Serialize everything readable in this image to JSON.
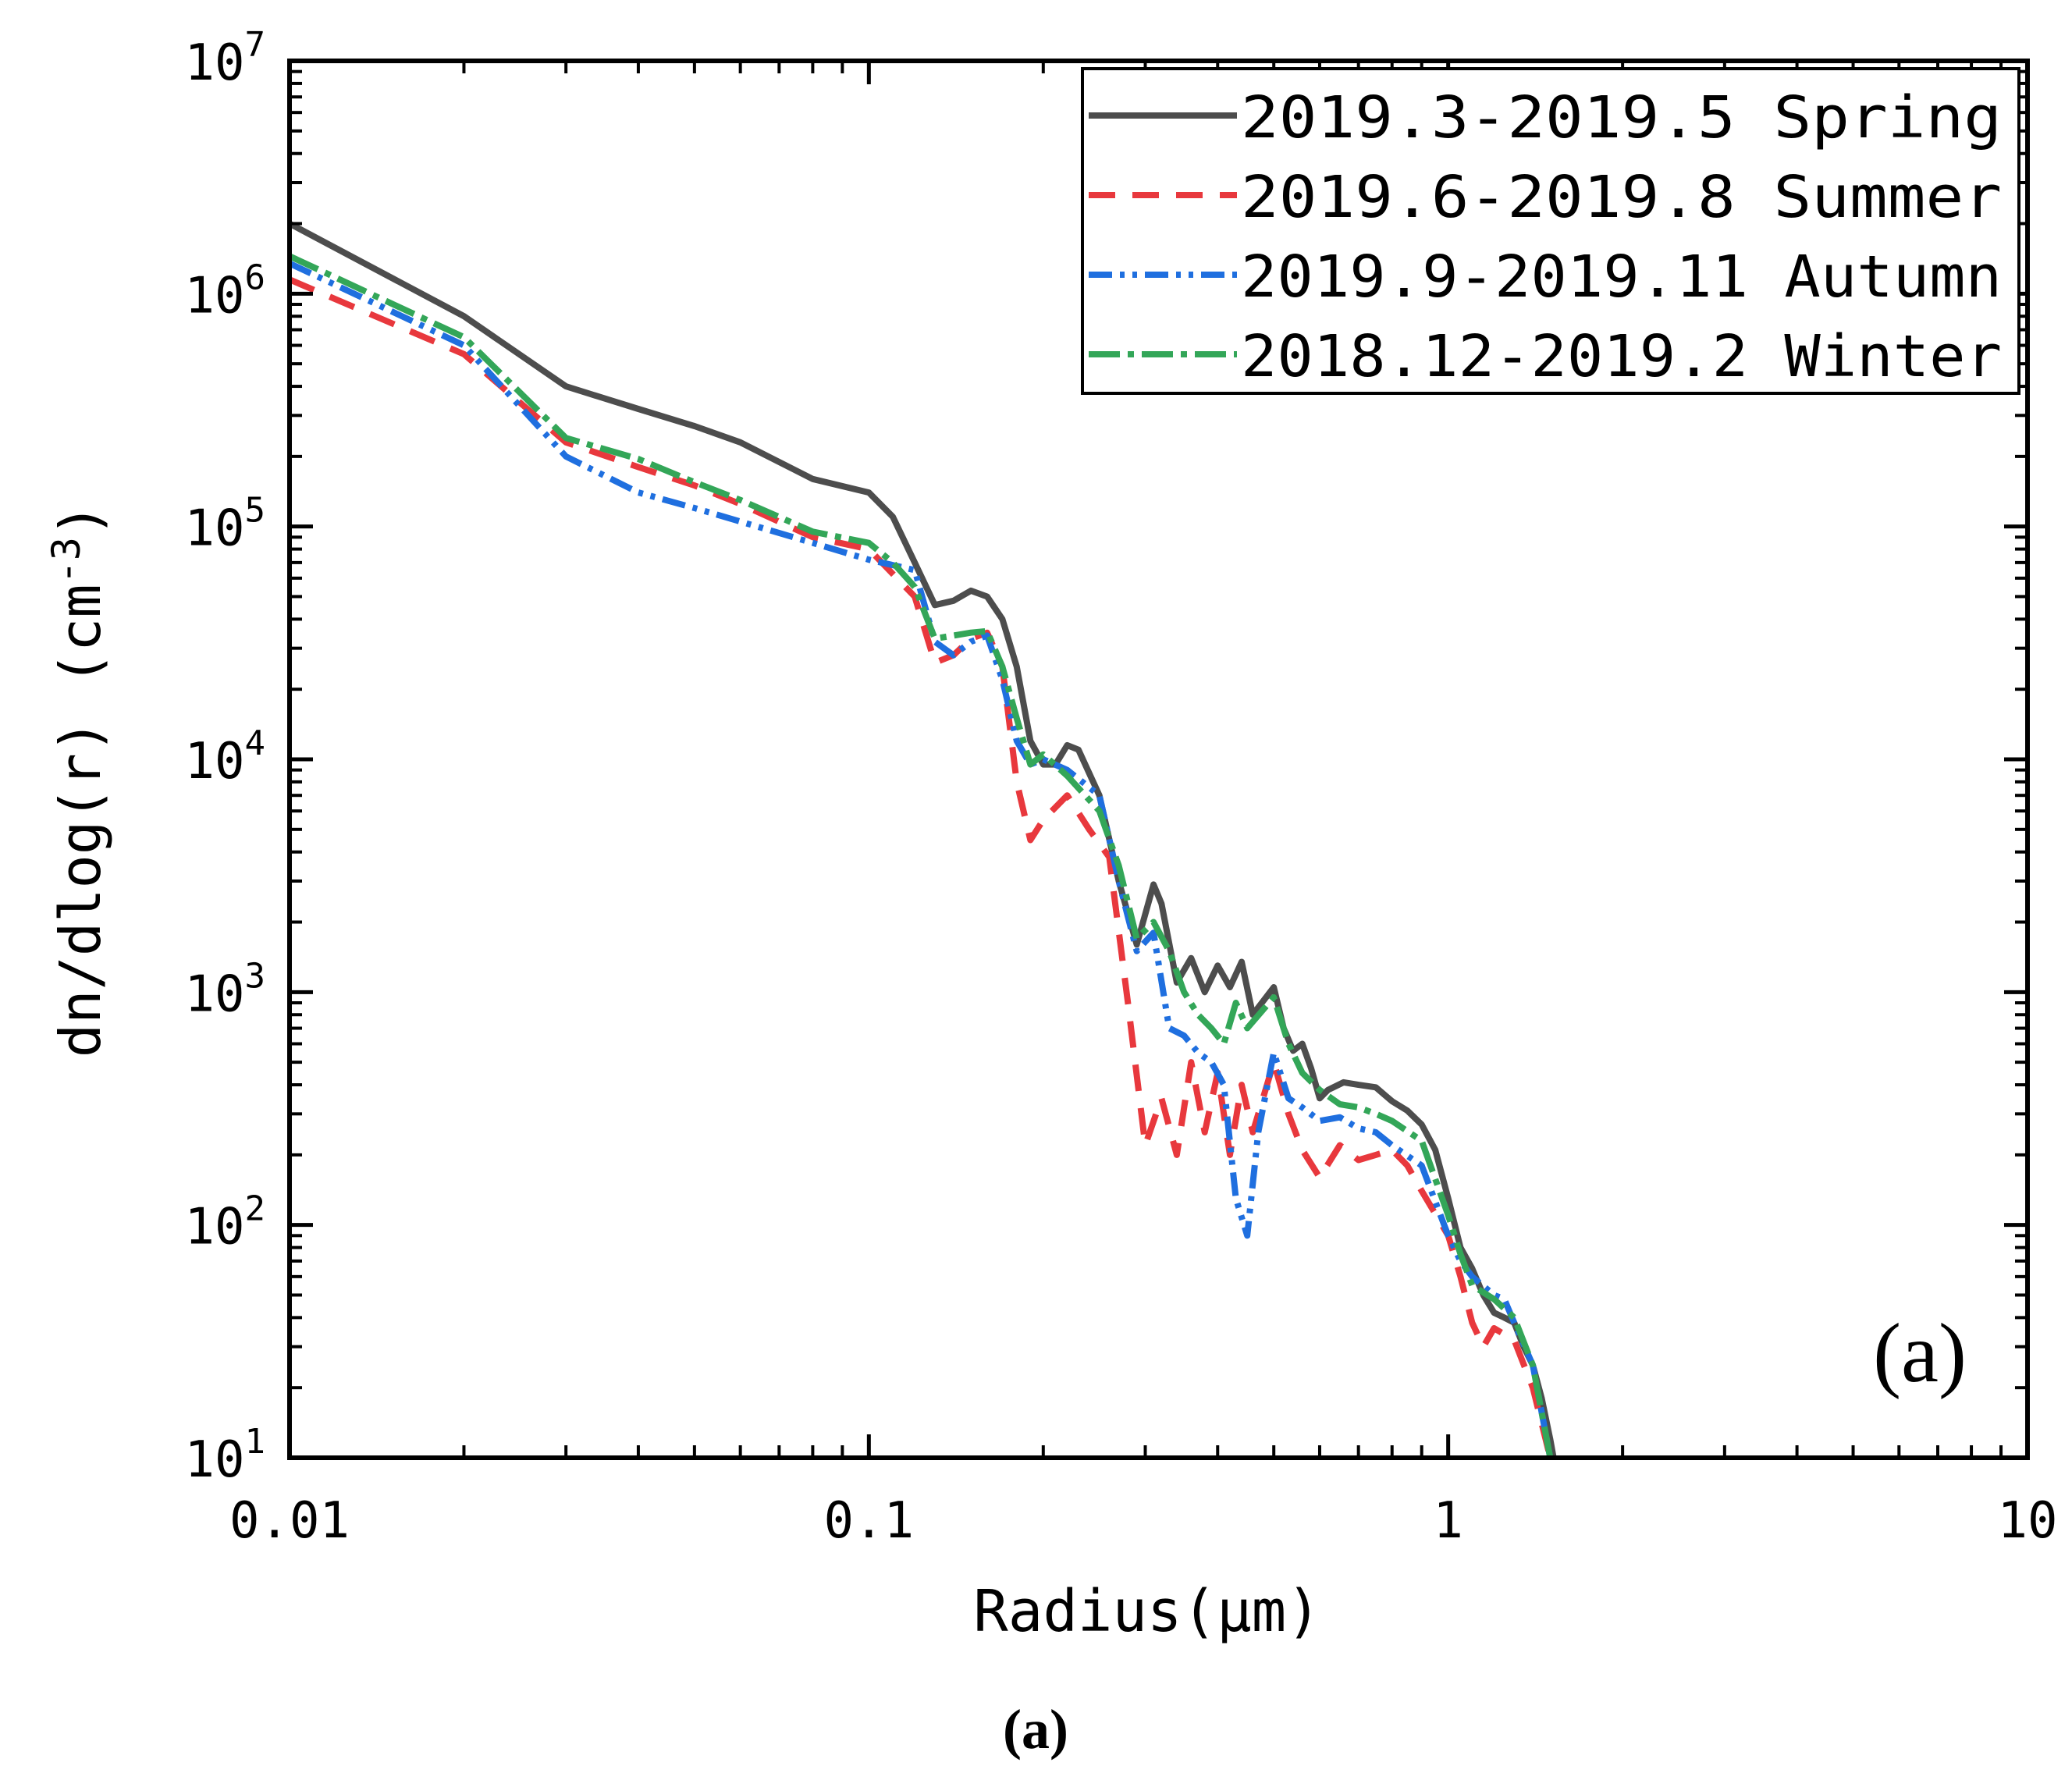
{
  "chart_data": {
    "type": "line",
    "xscale": "log",
    "yscale": "log",
    "xlim": [
      0.01,
      10
    ],
    "ylim": [
      10,
      10000000
    ],
    "xlabel": "Radius(μm)",
    "ylabel": "dn/dlog(r) (cm^-3)",
    "ylabel_main": "dn/dlog(r) (cm",
    "ylabel_exp": "-3",
    "ylabel_close": ")",
    "x_ticks": [
      {
        "value": 0.01,
        "label": "0.01"
      },
      {
        "value": 0.1,
        "label": "0.1"
      },
      {
        "value": 1,
        "label": "1"
      },
      {
        "value": 10,
        "label": "10"
      }
    ],
    "y_ticks": [
      {
        "value": 10,
        "base": "10",
        "exp": "1"
      },
      {
        "value": 100,
        "base": "10",
        "exp": "2"
      },
      {
        "value": 1000,
        "base": "10",
        "exp": "3"
      },
      {
        "value": 10000,
        "base": "10",
        "exp": "4"
      },
      {
        "value": 100000,
        "base": "10",
        "exp": "5"
      },
      {
        "value": 1000000,
        "base": "10",
        "exp": "6"
      },
      {
        "value": 10000000,
        "base": "10",
        "exp": "7"
      }
    ],
    "panel_label": "(a)",
    "caption": "(a)",
    "legend_position": "top-right",
    "series": [
      {
        "name": "2019.3-2019.5  Spring",
        "color": "#4d4d4d",
        "dash": "solid",
        "points": [
          [
            0.01,
            2000000
          ],
          [
            0.02,
            800000
          ],
          [
            0.03,
            400000
          ],
          [
            0.04,
            320000
          ],
          [
            0.05,
            270000
          ],
          [
            0.06,
            230000
          ],
          [
            0.08,
            160000
          ],
          [
            0.1,
            140000
          ],
          [
            0.11,
            110000
          ],
          [
            0.12,
            70000
          ],
          [
            0.13,
            46000
          ],
          [
            0.14,
            48000
          ],
          [
            0.15,
            53000
          ],
          [
            0.16,
            50000
          ],
          [
            0.17,
            40000
          ],
          [
            0.18,
            25000
          ],
          [
            0.19,
            12000
          ],
          [
            0.2,
            9500
          ],
          [
            0.21,
            9500
          ],
          [
            0.22,
            11500
          ],
          [
            0.23,
            11000
          ],
          [
            0.25,
            7000
          ],
          [
            0.27,
            3000
          ],
          [
            0.29,
            1600
          ],
          [
            0.31,
            2900
          ],
          [
            0.32,
            2400
          ],
          [
            0.34,
            1100
          ],
          [
            0.36,
            1400
          ],
          [
            0.38,
            1000
          ],
          [
            0.4,
            1300
          ],
          [
            0.42,
            1050
          ],
          [
            0.44,
            1350
          ],
          [
            0.46,
            800
          ],
          [
            0.5,
            1050
          ],
          [
            0.52,
            700
          ],
          [
            0.54,
            560
          ],
          [
            0.56,
            600
          ],
          [
            0.58,
            470
          ],
          [
            0.6,
            350
          ],
          [
            0.62,
            380
          ],
          [
            0.66,
            410
          ],
          [
            0.7,
            400
          ],
          [
            0.75,
            390
          ],
          [
            0.8,
            340
          ],
          [
            0.85,
            310
          ],
          [
            0.9,
            270
          ],
          [
            0.95,
            210
          ],
          [
            1.0,
            130
          ],
          [
            1.05,
            80
          ],
          [
            1.1,
            65
          ],
          [
            1.15,
            50
          ],
          [
            1.2,
            42
          ],
          [
            1.25,
            40
          ],
          [
            1.3,
            38
          ],
          [
            1.35,
            30
          ],
          [
            1.4,
            25
          ],
          [
            1.45,
            18
          ],
          [
            1.5,
            12
          ],
          [
            1.52,
            10
          ]
        ]
      },
      {
        "name": "2019.6-2019.8  Summer",
        "color": "#e8383d",
        "dash": "34,22",
        "points": [
          [
            0.01,
            1150000
          ],
          [
            0.02,
            550000
          ],
          [
            0.03,
            230000
          ],
          [
            0.04,
            180000
          ],
          [
            0.05,
            150000
          ],
          [
            0.06,
            125000
          ],
          [
            0.08,
            90000
          ],
          [
            0.1,
            80000
          ],
          [
            0.12,
            50000
          ],
          [
            0.13,
            26000
          ],
          [
            0.14,
            28000
          ],
          [
            0.15,
            33000
          ],
          [
            0.16,
            35000
          ],
          [
            0.17,
            25000
          ],
          [
            0.18,
            8000
          ],
          [
            0.19,
            4500
          ],
          [
            0.2,
            5500
          ],
          [
            0.22,
            7000
          ],
          [
            0.24,
            5000
          ],
          [
            0.26,
            3800
          ],
          [
            0.28,
            900
          ],
          [
            0.3,
            220
          ],
          [
            0.32,
            350
          ],
          [
            0.34,
            200
          ],
          [
            0.36,
            500
          ],
          [
            0.38,
            250
          ],
          [
            0.4,
            450
          ],
          [
            0.42,
            200
          ],
          [
            0.44,
            400
          ],
          [
            0.46,
            250
          ],
          [
            0.5,
            500
          ],
          [
            0.53,
            300
          ],
          [
            0.56,
            210
          ],
          [
            0.6,
            160
          ],
          [
            0.65,
            220
          ],
          [
            0.7,
            190
          ],
          [
            0.75,
            200
          ],
          [
            0.8,
            210
          ],
          [
            0.85,
            180
          ],
          [
            0.9,
            140
          ],
          [
            1.0,
            90
          ],
          [
            1.05,
            60
          ],
          [
            1.1,
            38
          ],
          [
            1.15,
            30
          ],
          [
            1.2,
            36
          ],
          [
            1.3,
            32
          ],
          [
            1.4,
            20
          ],
          [
            1.5,
            10
          ]
        ]
      },
      {
        "name": "2019.9-2019.11 Autumn",
        "color": "#1f6fdf",
        "dash": "30,10,6,10,6,10",
        "points": [
          [
            0.01,
            1350000
          ],
          [
            0.02,
            600000
          ],
          [
            0.03,
            200000
          ],
          [
            0.04,
            140000
          ],
          [
            0.05,
            120000
          ],
          [
            0.06,
            105000
          ],
          [
            0.08,
            85000
          ],
          [
            0.1,
            72000
          ],
          [
            0.12,
            65000
          ],
          [
            0.13,
            32000
          ],
          [
            0.14,
            28000
          ],
          [
            0.15,
            32000
          ],
          [
            0.16,
            34000
          ],
          [
            0.17,
            22000
          ],
          [
            0.18,
            12000
          ],
          [
            0.19,
            9500
          ],
          [
            0.2,
            10000
          ],
          [
            0.22,
            9000
          ],
          [
            0.25,
            7000
          ],
          [
            0.27,
            3000
          ],
          [
            0.29,
            1500
          ],
          [
            0.31,
            1800
          ],
          [
            0.33,
            700
          ],
          [
            0.35,
            650
          ],
          [
            0.37,
            550
          ],
          [
            0.39,
            500
          ],
          [
            0.41,
            400
          ],
          [
            0.43,
            130
          ],
          [
            0.45,
            90
          ],
          [
            0.47,
            250
          ],
          [
            0.5,
            550
          ],
          [
            0.53,
            350
          ],
          [
            0.56,
            320
          ],
          [
            0.6,
            280
          ],
          [
            0.65,
            290
          ],
          [
            0.7,
            260
          ],
          [
            0.75,
            250
          ],
          [
            0.8,
            220
          ],
          [
            0.9,
            180
          ],
          [
            1.0,
            90
          ],
          [
            1.05,
            70
          ],
          [
            1.1,
            60
          ],
          [
            1.2,
            50
          ],
          [
            1.25,
            48
          ],
          [
            1.3,
            38
          ],
          [
            1.4,
            25
          ],
          [
            1.5,
            10
          ]
        ]
      },
      {
        "name": "2018.12-2019.2 Winter",
        "color": "#33a658",
        "dash": "40,10,8,10",
        "points": [
          [
            0.01,
            1450000
          ],
          [
            0.02,
            650000
          ],
          [
            0.03,
            240000
          ],
          [
            0.04,
            195000
          ],
          [
            0.05,
            155000
          ],
          [
            0.06,
            130000
          ],
          [
            0.08,
            95000
          ],
          [
            0.1,
            85000
          ],
          [
            0.11,
            70000
          ],
          [
            0.12,
            55000
          ],
          [
            0.13,
            33000
          ],
          [
            0.14,
            34000
          ],
          [
            0.15,
            35000
          ],
          [
            0.16,
            35500
          ],
          [
            0.17,
            25000
          ],
          [
            0.18,
            15000
          ],
          [
            0.19,
            9500
          ],
          [
            0.2,
            10500
          ],
          [
            0.22,
            8500
          ],
          [
            0.25,
            6000
          ],
          [
            0.27,
            3500
          ],
          [
            0.29,
            1700
          ],
          [
            0.31,
            2000
          ],
          [
            0.33,
            1500
          ],
          [
            0.35,
            1000
          ],
          [
            0.37,
            800
          ],
          [
            0.39,
            700
          ],
          [
            0.41,
            600
          ],
          [
            0.43,
            900
          ],
          [
            0.45,
            700
          ],
          [
            0.5,
            950
          ],
          [
            0.53,
            600
          ],
          [
            0.56,
            450
          ],
          [
            0.6,
            380
          ],
          [
            0.65,
            330
          ],
          [
            0.7,
            320
          ],
          [
            0.75,
            300
          ],
          [
            0.8,
            280
          ],
          [
            0.9,
            230
          ],
          [
            1.0,
            110
          ],
          [
            1.05,
            75
          ],
          [
            1.1,
            55
          ],
          [
            1.2,
            48
          ],
          [
            1.3,
            40
          ],
          [
            1.4,
            25
          ],
          [
            1.5,
            10
          ]
        ]
      }
    ]
  }
}
